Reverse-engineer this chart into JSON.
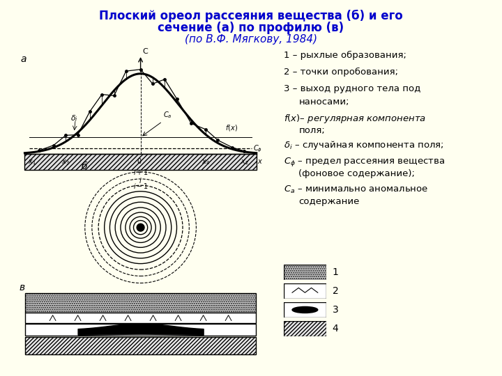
{
  "title_line1": "Плоский ореол рассеяния вещества (б) и его",
  "title_line2": "сечение (а) по профилю (в)",
  "title_line3": "(по В.Ф. Мягкову, 1984)",
  "bg_color": "#FFFFF0",
  "title_color": "#0000CC",
  "text_color": "#000000"
}
